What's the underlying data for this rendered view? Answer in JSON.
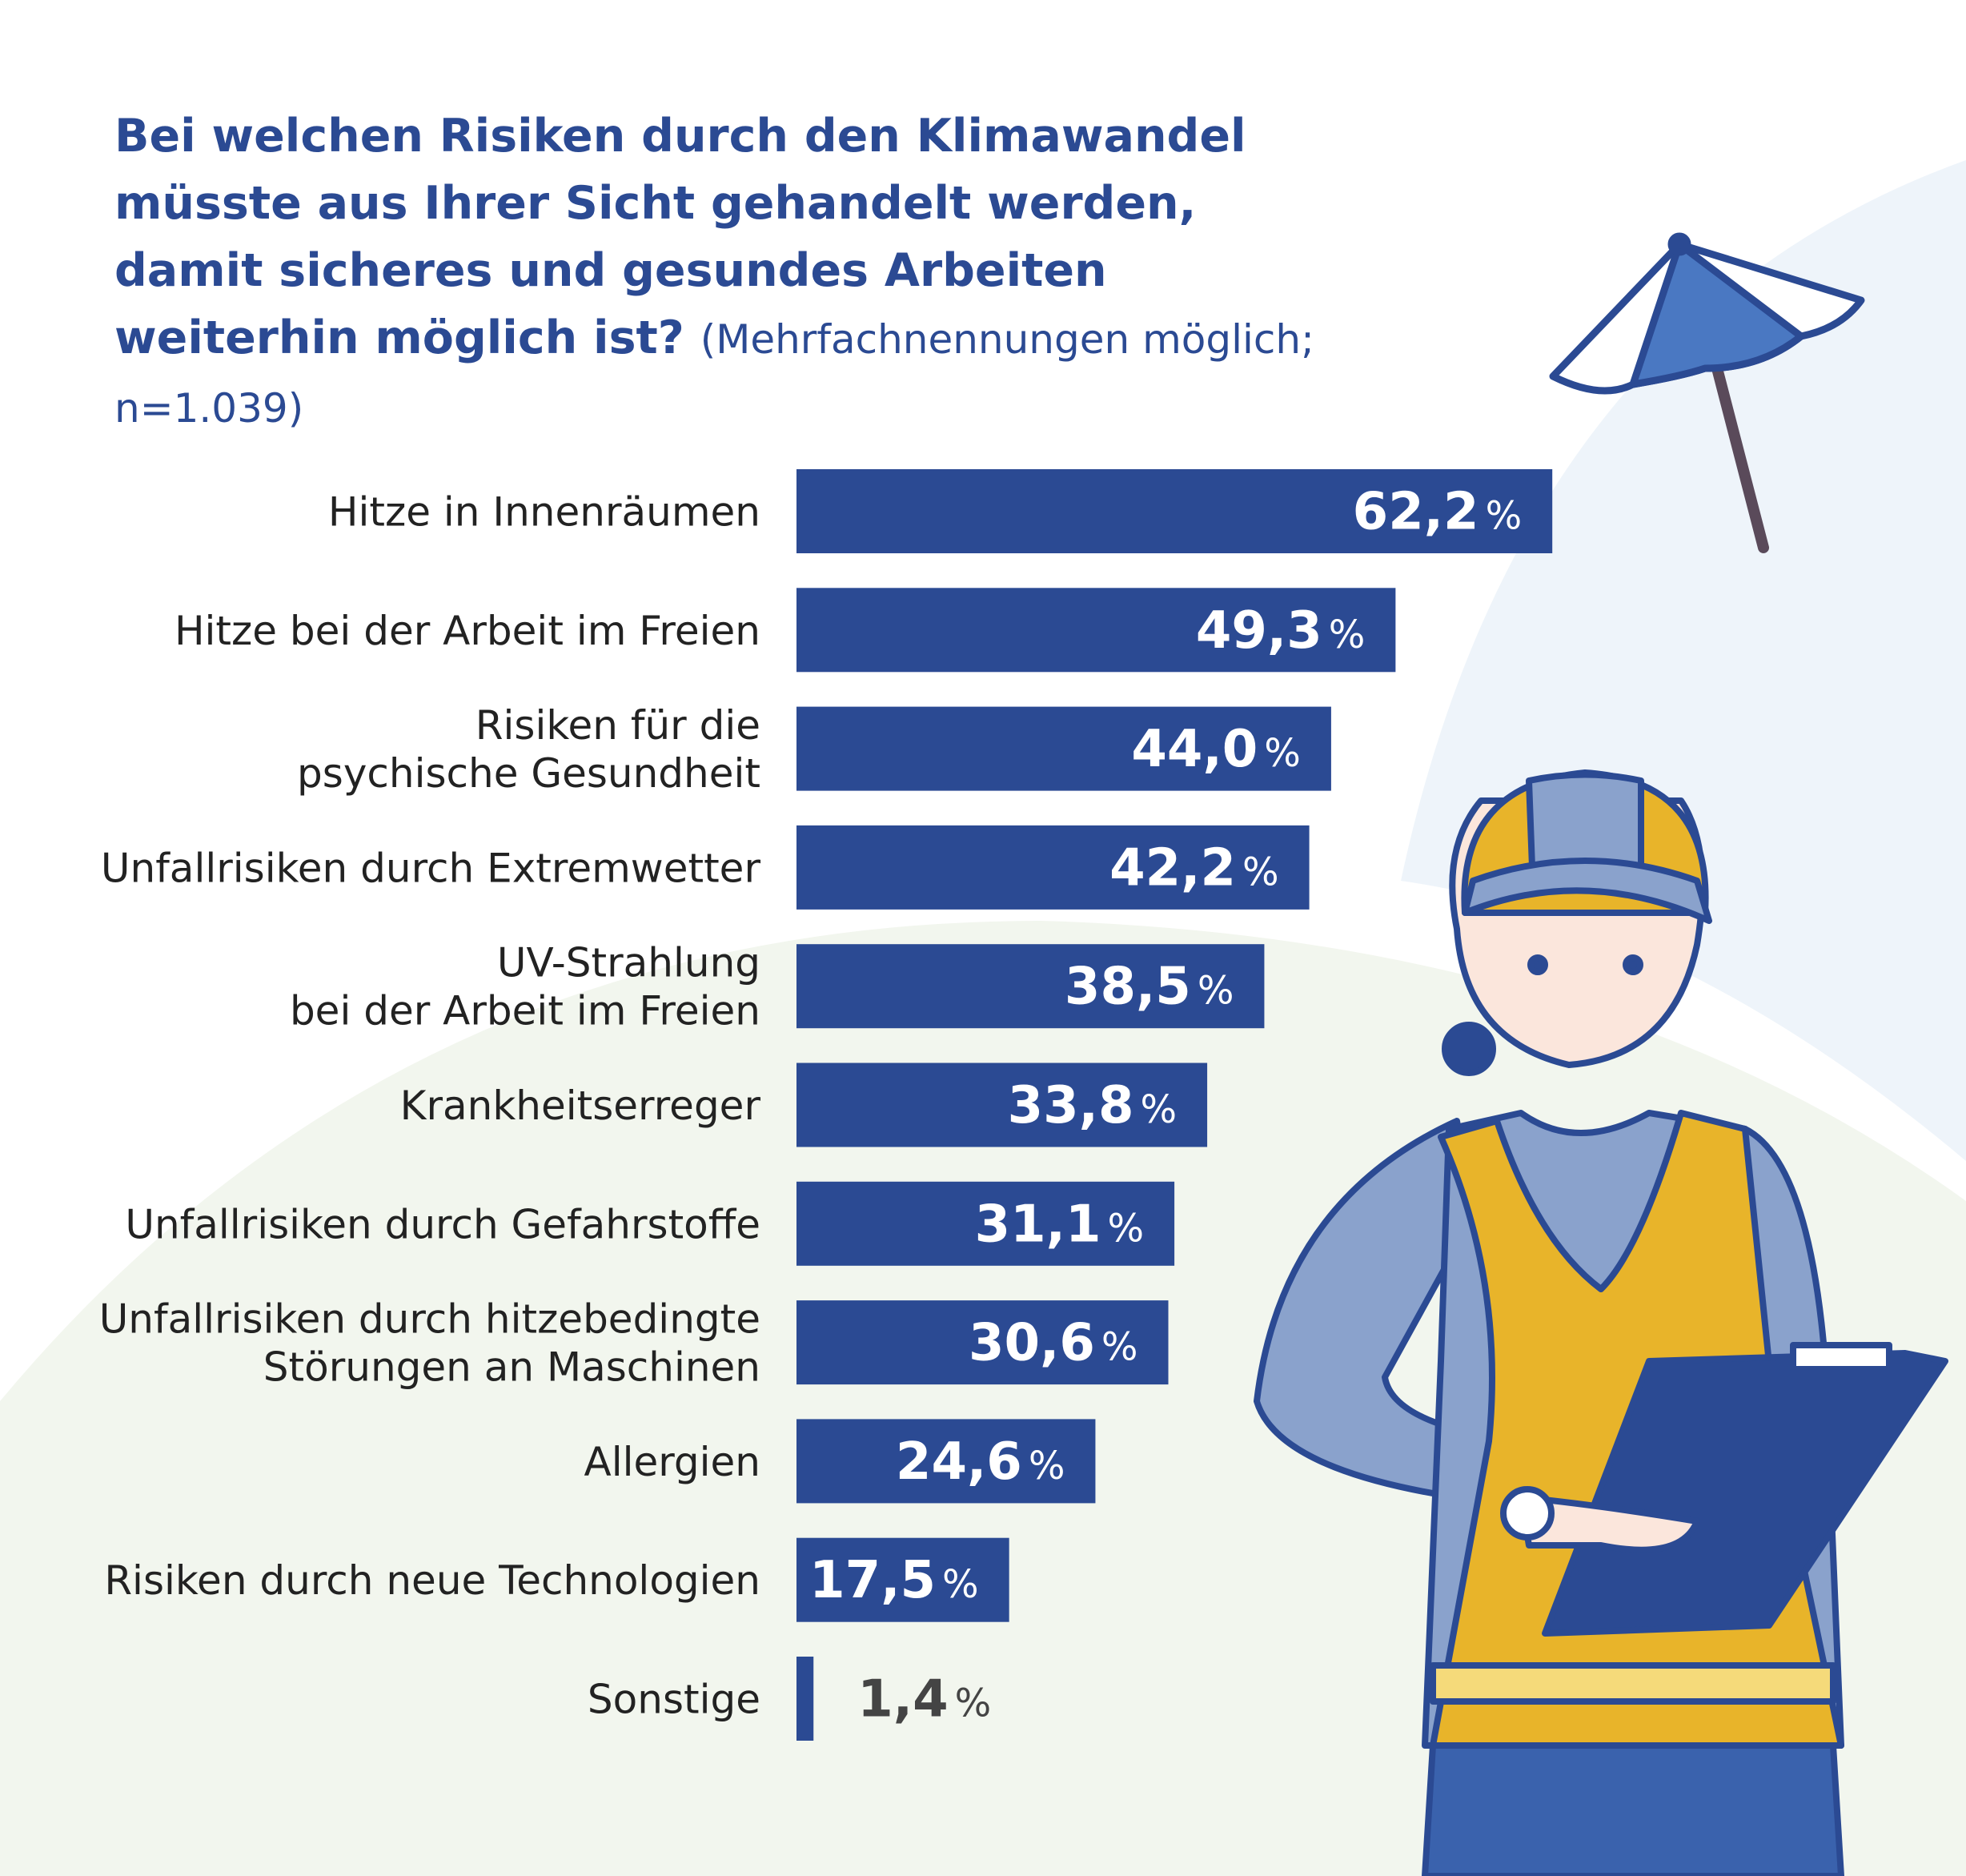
{
  "title": "Bei welchen Risiken durch den Klimawandel müsste aus Ihrer Sicht gehandelt werden, damit sicheres und gesundes Arbeiten weiterhin möglich ist?",
  "subtitle": "(Mehrfachnennungen möglich; n=1.039)",
  "colors": {
    "bar": "#2b4a93",
    "title": "#2b4a93",
    "label": "#222222",
    "value_inside": "#ffffff",
    "value_outside": "#444444"
  },
  "chart_data": {
    "type": "bar",
    "orientation": "horizontal",
    "title": "Bei welchen Risiken durch den Klimawandel müsste aus Ihrer Sicht gehandelt werden, damit sicheres und gesundes Arbeiten weiterhin möglich ist?",
    "subtitle": "(Mehrfachnennungen möglich; n=1.039)",
    "unit": "%",
    "categories": [
      [
        "Hitze in Innenräumen"
      ],
      [
        "Hitze bei der Arbeit im Freien"
      ],
      [
        "Risiken für die",
        "psychische Gesundheit"
      ],
      [
        "Unfallrisiken durch Extremwetter"
      ],
      [
        "UV-Strahlung",
        "bei der Arbeit im Freien"
      ],
      [
        "Krankheitserreger"
      ],
      [
        "Unfallrisiken durch Gefahrstoffe"
      ],
      [
        "Unfallrisiken durch hitzebedingte",
        "Störungen an Maschinen"
      ],
      [
        "Allergien"
      ],
      [
        "Risiken durch neue Technologien"
      ],
      [
        "Sonstige"
      ]
    ],
    "values": [
      62.2,
      49.3,
      44.0,
      42.2,
      38.5,
      33.8,
      31.1,
      30.6,
      24.6,
      17.5,
      1.4
    ],
    "value_labels": [
      "62,2",
      "49,3",
      "44,0",
      "42,2",
      "38,5",
      "33,8",
      "31,1",
      "30,6",
      "24,6",
      "17,5",
      "1,4"
    ],
    "grid": false,
    "legend": "none"
  }
}
